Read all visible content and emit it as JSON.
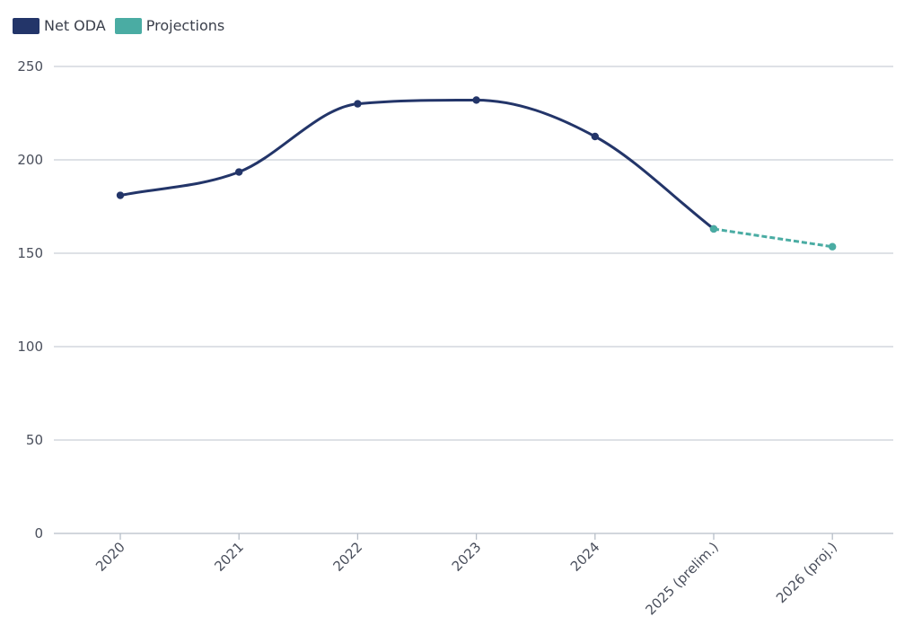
{
  "chart_data": {
    "type": "line",
    "title": "",
    "xlabel": "",
    "ylabel": "",
    "categories": [
      "2020",
      "2021",
      "2022",
      "2023",
      "2024",
      "2025 (prelim.)",
      "2026 (proj.)"
    ],
    "ylim": [
      0,
      250
    ],
    "yticks": [
      0,
      50,
      100,
      150,
      200,
      250
    ],
    "grid": true,
    "legend_position": "top-left",
    "series": [
      {
        "name": "Net ODA",
        "color": "#233569",
        "style": "solid-smooth",
        "points": [
          {
            "x": "2020",
            "y": 181
          },
          {
            "x": "2021",
            "y": 193.5
          },
          {
            "x": "2022",
            "y": 230
          },
          {
            "x": "2023",
            "y": 232
          },
          {
            "x": "2024",
            "y": 212.5
          },
          {
            "x": "2025 (prelim.)",
            "y": 163
          }
        ]
      },
      {
        "name": "Projections",
        "color": "#4aaca3",
        "style": "dashed",
        "points": [
          {
            "x": "2025 (prelim.)",
            "y": 163
          },
          {
            "x": "2026 (proj.)",
            "y": 153.5
          }
        ]
      }
    ]
  }
}
